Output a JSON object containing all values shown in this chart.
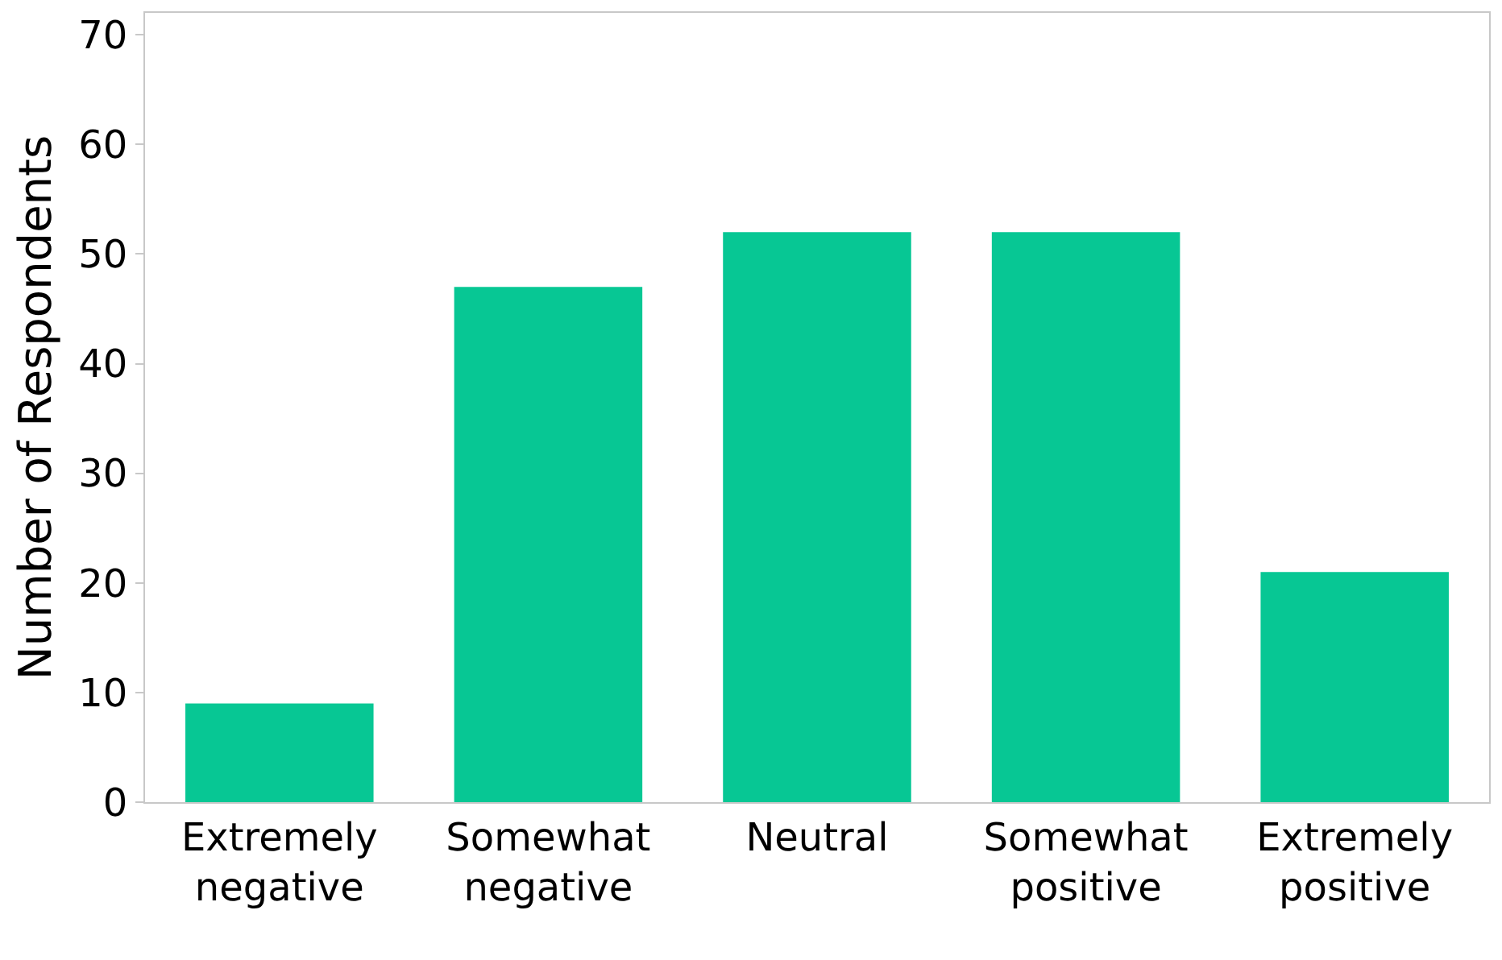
{
  "chart_data": {
    "type": "bar",
    "ylabel": "Number of Respondents",
    "categories": [
      "Extremely\nnegative",
      "Somewhat\nnegative",
      "Neutral",
      "Somewhat\npositive",
      "Extremely\npositive"
    ],
    "values": [
      9,
      47,
      52,
      52,
      21
    ],
    "color": "#07c794",
    "ylim": [
      0,
      72
    ],
    "yticks": [
      0,
      10,
      20,
      30,
      40,
      50,
      60,
      70
    ]
  }
}
